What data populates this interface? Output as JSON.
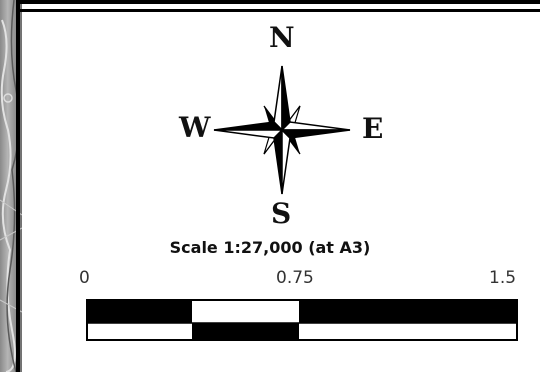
{
  "compass": {
    "north": "N",
    "south": "S",
    "west": "W",
    "east": "E"
  },
  "scale": {
    "title": "Scale 1:27,000 (at A3)",
    "ticks": [
      "0",
      "0.75",
      "1.5"
    ],
    "segment_pattern_top": [
      "black",
      "white",
      "black"
    ],
    "segment_pattern_bottom": [
      "white",
      "black",
      "white"
    ]
  },
  "colors": {
    "ink": "#000000",
    "text": "#111111",
    "tick_text": "#333333"
  }
}
